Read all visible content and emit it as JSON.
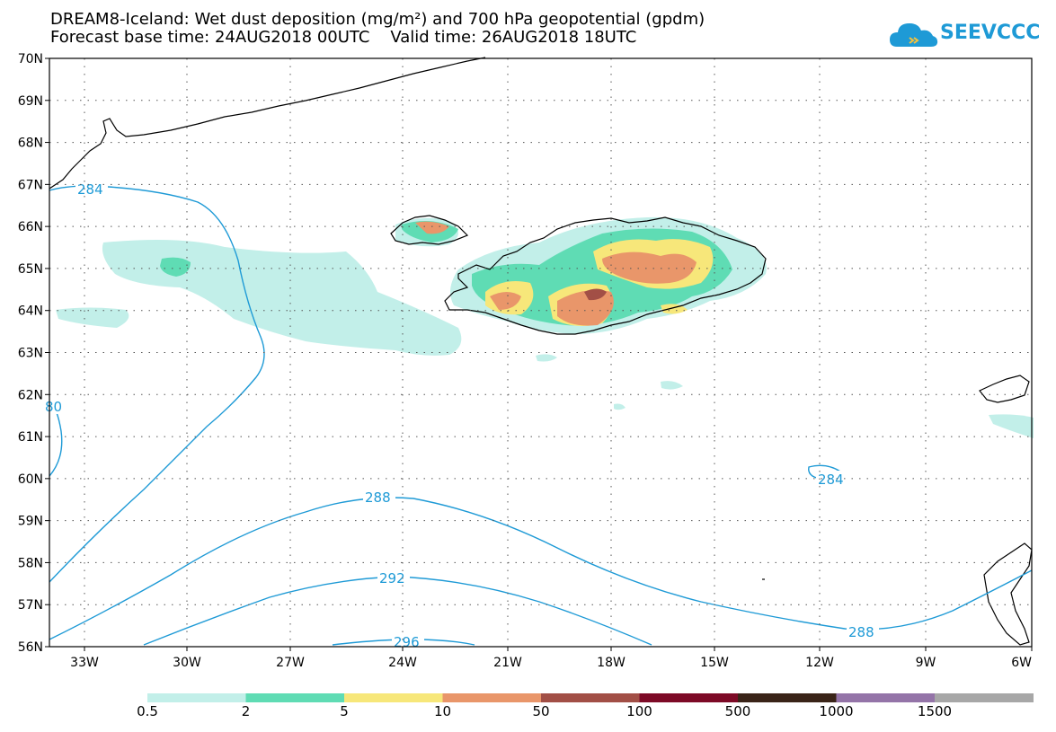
{
  "title_line1": "DREAM8-Iceland: Wet dust deposition (mg/m²) and 700 hPa geopotential (gpdm)",
  "title_line2": "Forecast base time: 24AUG2018 00UTC    Valid time: 26AUG2018 18UTC",
  "logo": {
    "text": "SEEVCCC",
    "icon": "cloud-icon",
    "color": "#1e9ad6"
  },
  "map": {
    "lon_labels": [
      "33W",
      "30W",
      "27W",
      "24W",
      "21W",
      "18W",
      "15W",
      "12W",
      "9W",
      "6W"
    ],
    "lat_labels": [
      "70N",
      "69N",
      "68N",
      "67N",
      "66N",
      "65N",
      "64N",
      "63N",
      "62N",
      "61N",
      "60N",
      "59N",
      "58N",
      "57N",
      "56N"
    ],
    "contour_color": "#1e9ad6",
    "contour_labels": [
      "284",
      "80",
      "288",
      "292",
      "296",
      "284",
      "288"
    ]
  },
  "colorbar": {
    "colors": [
      "#c2efe9",
      "#5fdcb4",
      "#f7e77a",
      "#e9966a",
      "#a24f46",
      "#7d0a26",
      "#3a2418",
      "#9474a8",
      "#a7a7a7"
    ],
    "labels": [
      "0.5",
      "2",
      "5",
      "10",
      "50",
      "100",
      "500",
      "1000",
      "1500"
    ]
  }
}
